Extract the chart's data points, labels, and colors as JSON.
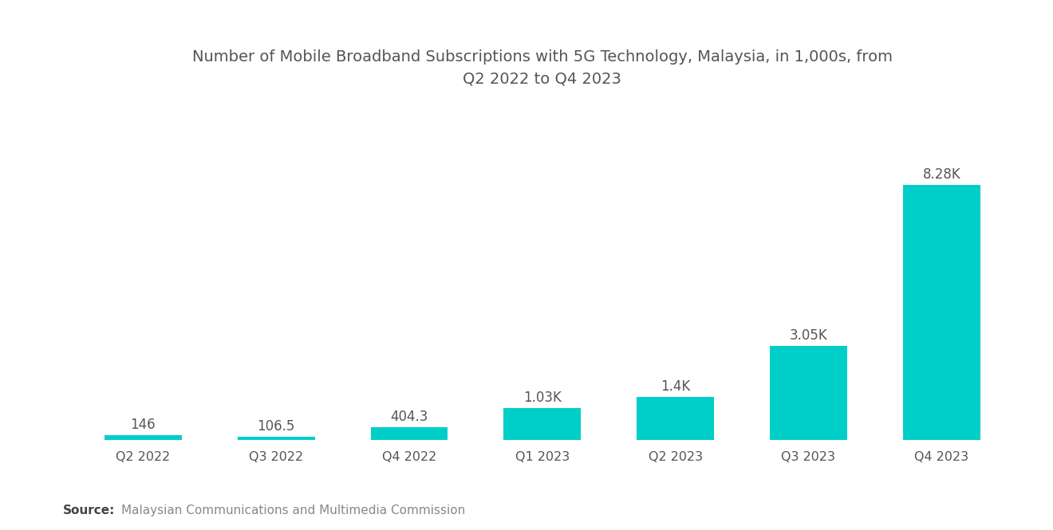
{
  "title": "Number of Mobile Broadband Subscriptions with 5G Technology, Malaysia, in 1,000s, from\nQ2 2022 to Q4 2023",
  "categories": [
    "Q2 2022",
    "Q3 2022",
    "Q4 2022",
    "Q1 2023",
    "Q2 2023",
    "Q3 2023",
    "Q4 2023"
  ],
  "values": [
    146,
    106.5,
    404.3,
    1030,
    1400,
    3050,
    8280
  ],
  "labels": [
    "146",
    "106.5",
    "404.3",
    "1.03K",
    "1.4K",
    "3.05K",
    "8.28K"
  ],
  "bar_color": "#00CEC9",
  "background_color": "#FFFFFF",
  "label_color": "#555555",
  "title_color": "#555555",
  "source_bold": "Source:",
  "source_text": "Malaysian Communications and Multimedia Commission",
  "title_fontsize": 14,
  "label_fontsize": 12,
  "tick_fontsize": 11.5,
  "source_fontsize": 11,
  "ylim": [
    0,
    10500
  ]
}
